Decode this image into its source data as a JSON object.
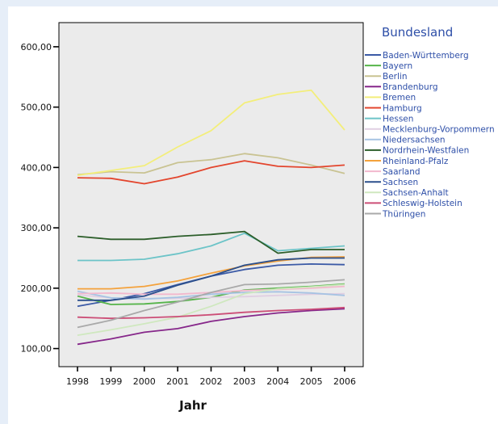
{
  "chart_data": {
    "type": "line",
    "title": "",
    "xlabel": "Jahr",
    "ylabel": "",
    "legend_title": "Bundesland",
    "legend_position": "right",
    "x": [
      "1998",
      "1999",
      "2000",
      "2001",
      "2002",
      "2003",
      "2004",
      "2005",
      "2006"
    ],
    "ylim": [
      70,
      640
    ],
    "yticks": [
      100,
      200,
      300,
      400,
      500,
      600
    ],
    "ytick_labels": [
      "100,00",
      "200,00",
      "300,00",
      "400,00",
      "500,00",
      "600,00"
    ],
    "grid": false,
    "plot_background": "#ebebeb",
    "series": [
      {
        "name": "Baden-Württemberg",
        "color": "#3b5aa6",
        "values": [
          170,
          180,
          191,
          206,
          220,
          231,
          238,
          240,
          239
        ]
      },
      {
        "name": "Bayern",
        "color": "#56b44a",
        "values": [
          187,
          173,
          174,
          178,
          185,
          197,
          200,
          203,
          207
        ]
      },
      {
        "name": "Berlin",
        "color": "#c9c392",
        "values": [
          388,
          393,
          391,
          408,
          413,
          423,
          416,
          404,
          390
        ]
      },
      {
        "name": "Brandenburg",
        "color": "#86278a",
        "values": [
          107,
          116,
          127,
          133,
          145,
          153,
          159,
          163,
          166
        ]
      },
      {
        "name": "Bremen",
        "color": "#f3ee7a",
        "values": [
          387,
          395,
          403,
          434,
          461,
          507,
          521,
          528,
          462
        ]
      },
      {
        "name": "Hamburg",
        "color": "#e3452d",
        "values": [
          383,
          382,
          373,
          384,
          400,
          411,
          402,
          400,
          404
        ]
      },
      {
        "name": "Hessen",
        "color": "#6cc4c8",
        "values": [
          246,
          246,
          248,
          257,
          270,
          291,
          262,
          266,
          270
        ]
      },
      {
        "name": "Mecklenburg-Vorpommern",
        "color": "#e0cfe2",
        "values": [
          189,
          184,
          183,
          183,
          185,
          186,
          188,
          190,
          191
        ]
      },
      {
        "name": "Niedersachsen",
        "color": "#a6c3e3",
        "values": [
          195,
          184,
          182,
          185,
          190,
          193,
          194,
          192,
          188
        ]
      },
      {
        "name": "Nordrhein-Westfalen",
        "color": "#2c5e2a",
        "values": [
          286,
          281,
          281,
          286,
          289,
          294,
          258,
          264,
          264
        ]
      },
      {
        "name": "Rheinland-Pfalz",
        "color": "#f4a23c",
        "values": [
          199,
          199,
          203,
          212,
          225,
          237,
          245,
          251,
          252
        ]
      },
      {
        "name": "Saarland",
        "color": "#f2b8cd",
        "values": [
          191,
          192,
          190,
          190,
          193,
          196,
          198,
          200,
          203
        ]
      },
      {
        "name": "Sachsen",
        "color": "#2b4f8c",
        "values": [
          180,
          180,
          187,
          205,
          220,
          238,
          247,
          250,
          250
        ]
      },
      {
        "name": "Sachsen-Anhalt",
        "color": "#cfe8bf",
        "values": [
          122,
          131,
          141,
          152,
          170,
          191,
          199,
          202,
          206
        ]
      },
      {
        "name": "Schleswig-Holstein",
        "color": "#cc4e77",
        "values": [
          152,
          150,
          151,
          153,
          156,
          160,
          163,
          165,
          168
        ]
      },
      {
        "name": "Thüringen",
        "color": "#a9a9a9",
        "values": [
          135,
          147,
          163,
          177,
          193,
          206,
          207,
          210,
          214
        ]
      }
    ]
  }
}
